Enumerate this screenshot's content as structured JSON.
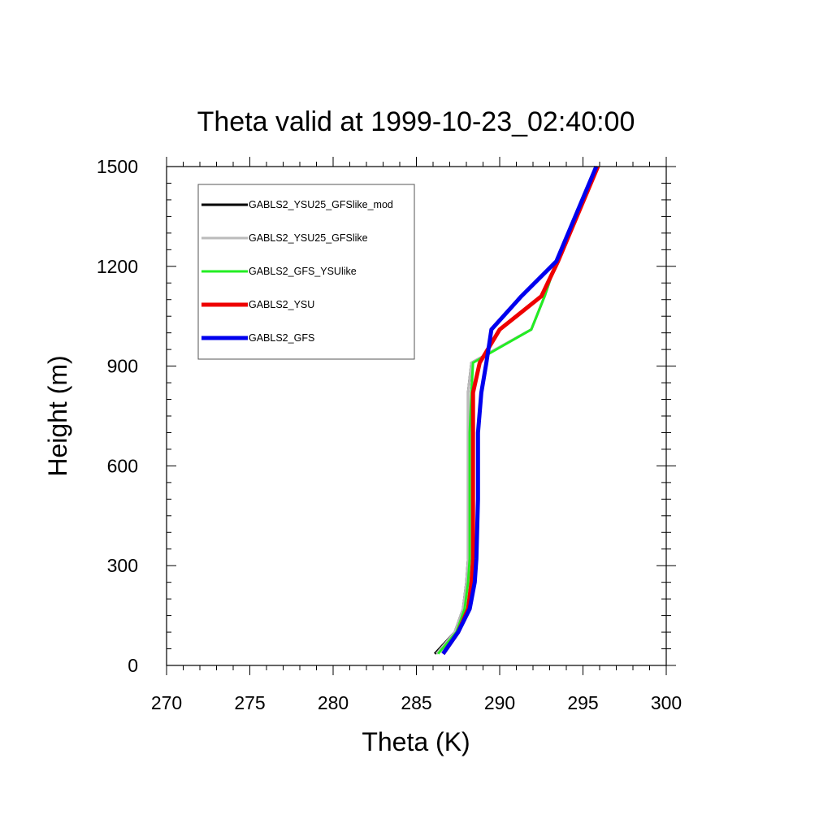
{
  "chart_data": {
    "type": "line",
    "title": "Theta valid at 1999-10-23_02:40:00",
    "xlabel": "Theta (K)",
    "ylabel": "Height (m)",
    "xlim": [
      270,
      300
    ],
    "ylim": [
      0,
      1500
    ],
    "x_ticks": [
      "270",
      "275",
      "280",
      "285",
      "290",
      "295",
      "300"
    ],
    "y_ticks": [
      "0",
      "300",
      "600",
      "900",
      "1200",
      "1500"
    ],
    "x_tick_values": [
      270,
      275,
      280,
      285,
      290,
      295,
      300
    ],
    "y_tick_values": [
      0,
      300,
      600,
      900,
      1200,
      1500
    ],
    "x_minor_step": 1,
    "y_minor_step": 50,
    "legend_position": "top-left",
    "grid": false,
    "series": [
      {
        "name": "GABLS2_YSU25_GFSlike_mod",
        "color": "#000000",
        "width": 3,
        "points": [
          [
            286.1,
            35
          ],
          [
            287.3,
            100
          ],
          [
            287.8,
            170
          ],
          [
            288.0,
            250
          ],
          [
            288.1,
            320
          ],
          [
            288.1,
            400
          ],
          [
            288.1,
            500
          ],
          [
            288.1,
            600
          ],
          [
            288.1,
            700
          ],
          [
            288.1,
            820
          ],
          [
            288.3,
            910
          ],
          [
            291.9,
            1010
          ],
          [
            292.7,
            1110
          ],
          [
            293.4,
            1215
          ],
          [
            295.9,
            1500
          ]
        ]
      },
      {
        "name": "GABLS2_YSU25_GFSlike",
        "color": "#bbbbbb",
        "width": 3,
        "points": [
          [
            286.2,
            35
          ],
          [
            287.3,
            100
          ],
          [
            287.8,
            170
          ],
          [
            288.0,
            250
          ],
          [
            288.1,
            320
          ],
          [
            288.1,
            500
          ],
          [
            288.1,
            700
          ],
          [
            288.1,
            820
          ],
          [
            288.3,
            910
          ],
          [
            291.9,
            1010
          ],
          [
            292.7,
            1110
          ],
          [
            293.4,
            1215
          ],
          [
            295.9,
            1500
          ]
        ]
      },
      {
        "name": "GABLS2_GFS_YSUlike",
        "color": "#22ee22",
        "width": 3,
        "points": [
          [
            286.3,
            35
          ],
          [
            287.4,
            100
          ],
          [
            287.9,
            170
          ],
          [
            288.1,
            250
          ],
          [
            288.2,
            320
          ],
          [
            288.2,
            500
          ],
          [
            288.2,
            700
          ],
          [
            288.3,
            820
          ],
          [
            288.4,
            910
          ],
          [
            291.9,
            1010
          ],
          [
            292.7,
            1110
          ],
          [
            293.4,
            1215
          ],
          [
            295.9,
            1500
          ]
        ]
      },
      {
        "name": "GABLS2_YSU",
        "color": "#ee0000",
        "width": 5,
        "points": [
          [
            286.6,
            35
          ],
          [
            287.5,
            100
          ],
          [
            288.1,
            170
          ],
          [
            288.3,
            250
          ],
          [
            288.4,
            320
          ],
          [
            288.4,
            500
          ],
          [
            288.4,
            700
          ],
          [
            288.4,
            820
          ],
          [
            288.8,
            910
          ],
          [
            290.0,
            1010
          ],
          [
            292.5,
            1110
          ],
          [
            293.5,
            1215
          ],
          [
            295.9,
            1500
          ]
        ]
      },
      {
        "name": "GABLS2_GFS",
        "color": "#0000ee",
        "width": 5,
        "points": [
          [
            286.6,
            35
          ],
          [
            287.5,
            100
          ],
          [
            288.2,
            170
          ],
          [
            288.5,
            250
          ],
          [
            288.6,
            320
          ],
          [
            288.7,
            500
          ],
          [
            288.7,
            700
          ],
          [
            288.9,
            820
          ],
          [
            289.2,
            910
          ],
          [
            289.5,
            1010
          ],
          [
            291.3,
            1110
          ],
          [
            293.4,
            1215
          ],
          [
            295.8,
            1500
          ]
        ]
      }
    ]
  }
}
